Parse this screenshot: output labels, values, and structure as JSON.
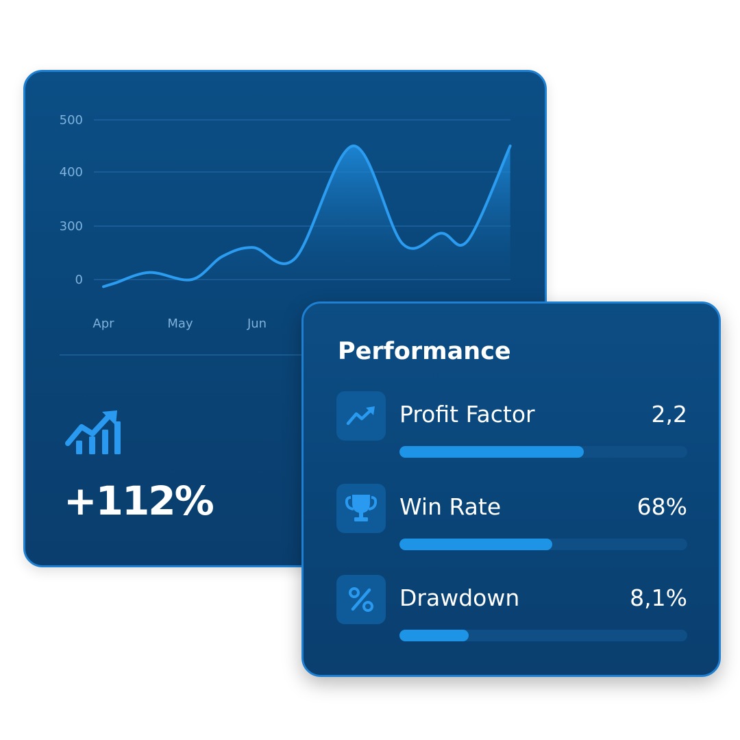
{
  "chart_data": {
    "type": "area",
    "categories": [
      "Apr",
      "May",
      "Jun"
    ],
    "y_ticks": [
      "500",
      "400",
      "300",
      "0"
    ],
    "series": [
      {
        "x": [
          0,
          0.15,
          0.6,
          1.15,
          1.55,
          1.95,
          2.5,
          3.25,
          3.9,
          4.4,
          4.75,
          5.3
        ],
        "values": [
          -40,
          -20,
          40,
          0,
          130,
          180,
          120,
          450,
          200,
          260,
          220,
          450
        ]
      }
    ],
    "grid": true,
    "line_color": "#2b9cf0"
  },
  "growth": {
    "icon": "trend-up-bars-icon",
    "value": "+112%"
  },
  "performance": {
    "title": "Performance",
    "metrics": [
      {
        "icon": "trend-up-icon",
        "label": "Profit Factor",
        "value": "2,2",
        "fill": 0.64
      },
      {
        "icon": "trophy-icon",
        "label": "Win Rate",
        "value": "68%",
        "fill": 0.53
      },
      {
        "icon": "percent-icon",
        "label": "Drawdown",
        "value": "8,1%",
        "fill": 0.24
      }
    ]
  }
}
